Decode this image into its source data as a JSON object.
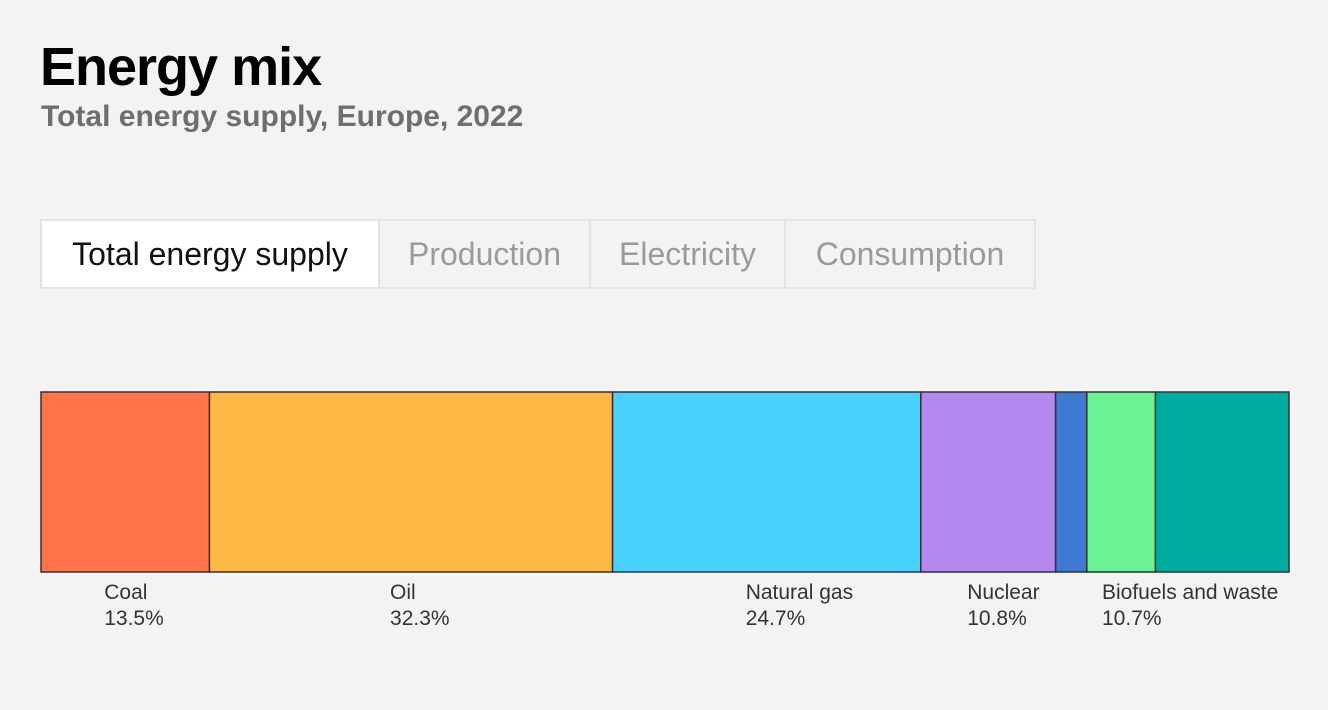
{
  "header": {
    "title": "Energy mix",
    "subtitle": "Total energy supply, Europe, 2022"
  },
  "tabs": [
    {
      "label": "Total energy supply",
      "active": true
    },
    {
      "label": "Production",
      "active": false
    },
    {
      "label": "Electricity",
      "active": false
    },
    {
      "label": "Consumption",
      "active": false
    }
  ],
  "chart_data": {
    "type": "bar",
    "orientation": "horizontal-stacked",
    "title": "Energy mix",
    "subtitle": "Total energy supply, Europe, 2022",
    "unit": "%",
    "xlim": [
      0,
      100
    ],
    "grid": false,
    "segments": [
      {
        "name": "Coal",
        "value": 13.5,
        "color": "#ff7549",
        "labeled": true
      },
      {
        "name": "Oil",
        "value": 32.3,
        "color": "#ffb845",
        "labeled": true
      },
      {
        "name": "Natural gas",
        "value": 24.7,
        "color": "#4ad2ff",
        "labeled": true
      },
      {
        "name": "Nuclear",
        "value": 10.8,
        "color": "#b388ef",
        "labeled": true
      },
      {
        "name": "",
        "value": 2.5,
        "color": "#3d7bd3",
        "labeled": false
      },
      {
        "name": "",
        "value": 5.5,
        "color": "#6af295",
        "labeled": false
      },
      {
        "name": "Biofuels and waste",
        "value": 10.7,
        "color": "#00ac9e",
        "labeled": true
      }
    ]
  }
}
